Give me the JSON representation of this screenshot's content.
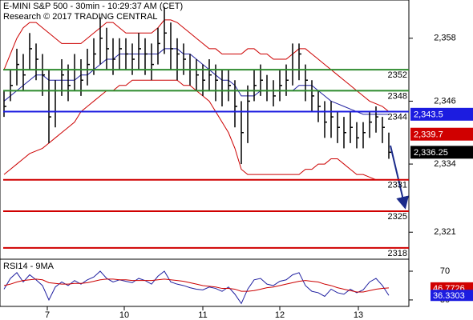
{
  "chart_data": [
    {
      "type": "ohlc",
      "title": "E-MINI S&P 500 - 30min - 10:29:37 AM (CET)",
      "subtitle": "Research © 2017 TRADING CENTRAL",
      "xlim": [
        -0.625,
        63.125
      ],
      "xticks": [
        {
          "value": 6.75,
          "label": "7"
        },
        {
          "value": 18.75,
          "label": "10"
        },
        {
          "value": 31,
          "label": "11"
        },
        {
          "value": 43,
          "label": "12"
        },
        {
          "value": 55.25,
          "label": "13"
        }
      ],
      "ylim": [
        2316,
        2365.3
      ],
      "yticks": [
        {
          "value": 2358,
          "label": "2,358"
        },
        {
          "value": 2346,
          "label": "2,346"
        },
        {
          "value": 2334,
          "label": "2,334"
        },
        {
          "value": 2321,
          "label": "2,321"
        }
      ],
      "color": "#000000",
      "high": [
        2348,
        2352,
        2356,
        2355,
        2359,
        2357,
        2355,
        2352,
        2350,
        2354,
        2353,
        2355,
        2354,
        2356,
        2358,
        2362,
        2360,
        2358,
        2358,
        2358,
        2357,
        2359,
        2358,
        2357,
        2360,
        2364,
        2361,
        2358,
        2357,
        2355,
        2354,
        2353,
        2354,
        2353,
        2352,
        2352,
        2350,
        2346,
        2349,
        2352,
        2353,
        2351,
        2350,
        2352,
        2353,
        2357,
        2357,
        2353,
        2350,
        2348,
        2346,
        2346,
        2344,
        2343,
        2344,
        2342,
        2342,
        2344,
        2345,
        2343,
        2340
      ],
      "low": [
        2343,
        2346,
        2349,
        2348,
        2352,
        2350,
        2347,
        2338,
        2341,
        2347,
        2346,
        2348,
        2347,
        2349,
        2351,
        2353,
        2352,
        2351,
        2352,
        2352,
        2351,
        2352,
        2351,
        2350,
        2353,
        2355,
        2352,
        2350,
        2351,
        2349,
        2348,
        2347,
        2348,
        2346,
        2345,
        2346,
        2341,
        2334,
        2338,
        2346,
        2347,
        2346,
        2345,
        2346,
        2347,
        2349,
        2350,
        2346,
        2344,
        2342,
        2339,
        2339,
        2338,
        2337,
        2338,
        2337,
        2337,
        2339,
        2340,
        2338,
        2335
      ],
      "close": [
        2345,
        2349,
        2353,
        2351,
        2356,
        2354,
        2351,
        2343,
        2348,
        2351,
        2349,
        2352,
        2350,
        2353,
        2355,
        2358,
        2356,
        2354,
        2356,
        2355,
        2354,
        2356,
        2355,
        2353,
        2357,
        2359,
        2356,
        2355,
        2354,
        2352,
        2351,
        2350,
        2351,
        2350,
        2348,
        2349,
        2345,
        2340,
        2346,
        2349,
        2350,
        2348,
        2347,
        2349,
        2350,
        2352,
        2355,
        2350,
        2347,
        2345,
        2342,
        2343,
        2341,
        2340,
        2341,
        2339,
        2340,
        2342,
        2343,
        2341,
        2336.25
      ],
      "lines": [
        {
          "color": "#cc0000",
          "values": [
            2352,
            2355,
            2358,
            2360,
            2361,
            2361,
            2360,
            2359,
            2358,
            2357,
            2357,
            2357,
            2357,
            2358,
            2359,
            2360,
            2361,
            2361,
            2360,
            2359,
            2359,
            2359,
            2359,
            2359,
            2360,
            2361.5,
            2361.5,
            2361,
            2360,
            2359,
            2358,
            2357,
            2356,
            2356,
            2355,
            2355,
            2355,
            2355,
            2356,
            2356,
            2355,
            2355,
            2354,
            2354,
            2354,
            2355,
            2356,
            2356,
            2355,
            2354,
            2353,
            2352,
            2351,
            2350,
            2349,
            2348,
            2347,
            2346,
            2345.5,
            2345,
            2344
          ]
        },
        {
          "color": "#1f1fa0",
          "values": [
            2346,
            2347,
            2348,
            2349,
            2350,
            2351,
            2351,
            2350,
            2350,
            2350,
            2350,
            2350,
            2351,
            2351,
            2352,
            2353,
            2354,
            2354,
            2355,
            2355,
            2355,
            2355,
            2355,
            2355,
            2355,
            2356,
            2356,
            2356,
            2355,
            2355,
            2354,
            2353,
            2352,
            2351,
            2350,
            2350,
            2349,
            2347,
            2347,
            2347,
            2348,
            2348,
            2348,
            2348,
            2348,
            2348,
            2349,
            2349,
            2349,
            2348,
            2347,
            2346,
            2345.5,
            2345,
            2344.5,
            2344,
            2343.5,
            2343.5,
            2343.5,
            2343.5,
            2343.5
          ]
        },
        {
          "color": "#cc0000",
          "values": [
            2332,
            2333,
            2334,
            2335,
            2336,
            2336.5,
            2337,
            2338,
            2339,
            2340,
            2341,
            2342,
            2344,
            2345,
            2346,
            2347,
            2348,
            2348,
            2349,
            2349,
            2350,
            2350,
            2350,
            2350,
            2350,
            2350,
            2350,
            2350,
            2349,
            2349,
            2348,
            2347,
            2346,
            2344,
            2342,
            2340,
            2337,
            2333,
            2332,
            2332,
            2332,
            2332,
            2332,
            2332,
            2332,
            2332,
            2332,
            2333,
            2333,
            2334,
            2334,
            2335,
            2335,
            2334,
            2333,
            2332,
            2332,
            2331.5,
            2331,
            2331,
            2331
          ]
        }
      ],
      "levels": [
        {
          "value": 2352,
          "color": "#2e8b2e"
        },
        {
          "value": 2348,
          "color": "#2e8b2e"
        },
        {
          "value": 2344,
          "color": "#1c1ce0"
        },
        {
          "value": 2331,
          "color": "#d00000"
        },
        {
          "value": 2325,
          "color": "#d00000"
        },
        {
          "value": 2318,
          "color": "#d00000"
        }
      ],
      "price_labels": [
        {
          "value": 2343.5,
          "label": "2,343.5",
          "color": "#1c1ce0"
        },
        {
          "value": 2339.7,
          "label": "2,339.7",
          "color": "#d00000"
        },
        {
          "value": 2336.25,
          "label": "2,336.25",
          "color": "#000000"
        }
      ]
    },
    {
      "type": "rsi",
      "title": "RSI14 - 9MA",
      "xlim": [
        -0.625,
        63.125
      ],
      "xticks": [
        {
          "value": 6.75,
          "label": "7"
        },
        {
          "value": 18.75,
          "label": "10"
        },
        {
          "value": 31,
          "label": "11"
        },
        {
          "value": 43,
          "label": "12"
        },
        {
          "value": 55.25,
          "label": "13"
        }
      ],
      "ylim": [
        21,
        85.6
      ],
      "yticks": [
        70,
        30
      ],
      "series": [
        {
          "color": "#1f1fa0",
          "values": [
            45,
            60,
            68,
            55,
            65,
            58,
            50,
            30,
            48,
            55,
            50,
            57,
            52,
            58,
            62,
            70,
            60,
            55,
            58,
            56,
            54,
            60,
            57,
            52,
            63,
            70,
            55,
            52,
            50,
            47,
            45,
            44,
            48,
            46,
            42,
            48,
            38,
            25,
            45,
            58,
            60,
            52,
            50,
            56,
            58,
            65,
            68,
            50,
            42,
            40,
            35,
            45,
            40,
            38,
            45,
            40,
            44,
            55,
            60,
            50,
            36.3303
          ]
        },
        {
          "color": "#cc0000",
          "values": [
            50,
            52,
            55,
            57,
            58,
            59,
            58,
            54,
            53,
            52,
            52,
            53,
            53,
            54,
            56,
            58,
            59,
            59,
            58,
            58,
            57,
            57,
            57,
            57,
            58,
            59,
            58,
            57,
            56,
            54,
            52,
            50,
            49,
            48,
            46,
            46,
            45,
            42,
            42,
            43,
            45,
            47,
            48,
            50,
            52,
            54,
            56,
            57,
            56,
            55,
            52,
            50,
            47,
            45,
            43,
            41,
            41,
            43,
            45,
            46,
            46.7726
          ]
        }
      ],
      "value_labels": [
        {
          "value": 46.7726,
          "label": "46.7726",
          "color": "#d00000"
        },
        {
          "value": 36.3303,
          "label": "36.3303",
          "color": "#1c1ce0"
        }
      ]
    }
  ]
}
